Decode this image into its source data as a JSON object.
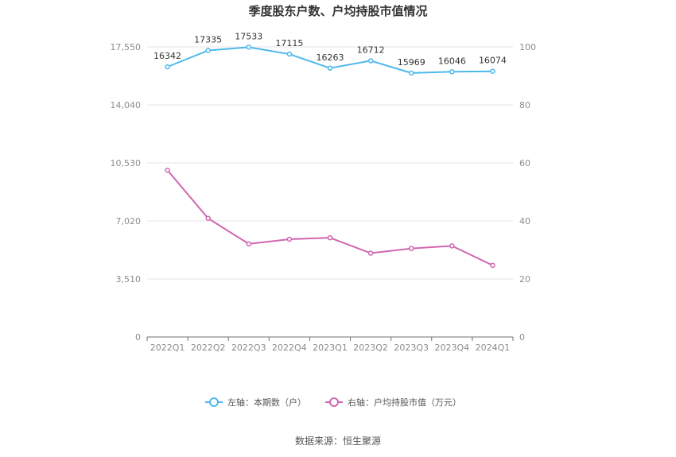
{
  "chart_data": {
    "type": "line",
    "title": "季度股东户数、户均持股市值情况",
    "categories": [
      "2022Q1",
      "2022Q2",
      "2022Q3",
      "2022Q4",
      "2023Q1",
      "2023Q2",
      "2023Q3",
      "2023Q4",
      "2024Q1"
    ],
    "left_axis": {
      "ticks": [
        "0",
        "3,510",
        "7,020",
        "10,530",
        "14,040",
        "17,550"
      ],
      "ylim": [
        0,
        17550
      ]
    },
    "right_axis": {
      "ticks": [
        "0",
        "20",
        "40",
        "60",
        "80",
        "100"
      ],
      "ylim": [
        0,
        100
      ]
    },
    "series": [
      {
        "name": "左轴：本期数（户）",
        "axis": "left",
        "color": "#4db8ec",
        "values": [
          16342,
          17335,
          17533,
          17115,
          16263,
          16712,
          15969,
          16046,
          16074
        ],
        "labels": [
          "16342",
          "17335",
          "17533",
          "17115",
          "16263",
          "16712",
          "15969",
          "16046",
          "16074"
        ]
      },
      {
        "name": "右轴：户均持股市值（万元）",
        "axis": "right",
        "color": "#d066b0",
        "values": [
          57.5,
          40.9,
          32.1,
          33.7,
          34.2,
          28.9,
          30.5,
          31.4,
          24.7
        ]
      }
    ],
    "grid": true,
    "legend_position": "bottom"
  },
  "footer": {
    "source": "数据来源：恒生聚源"
  }
}
